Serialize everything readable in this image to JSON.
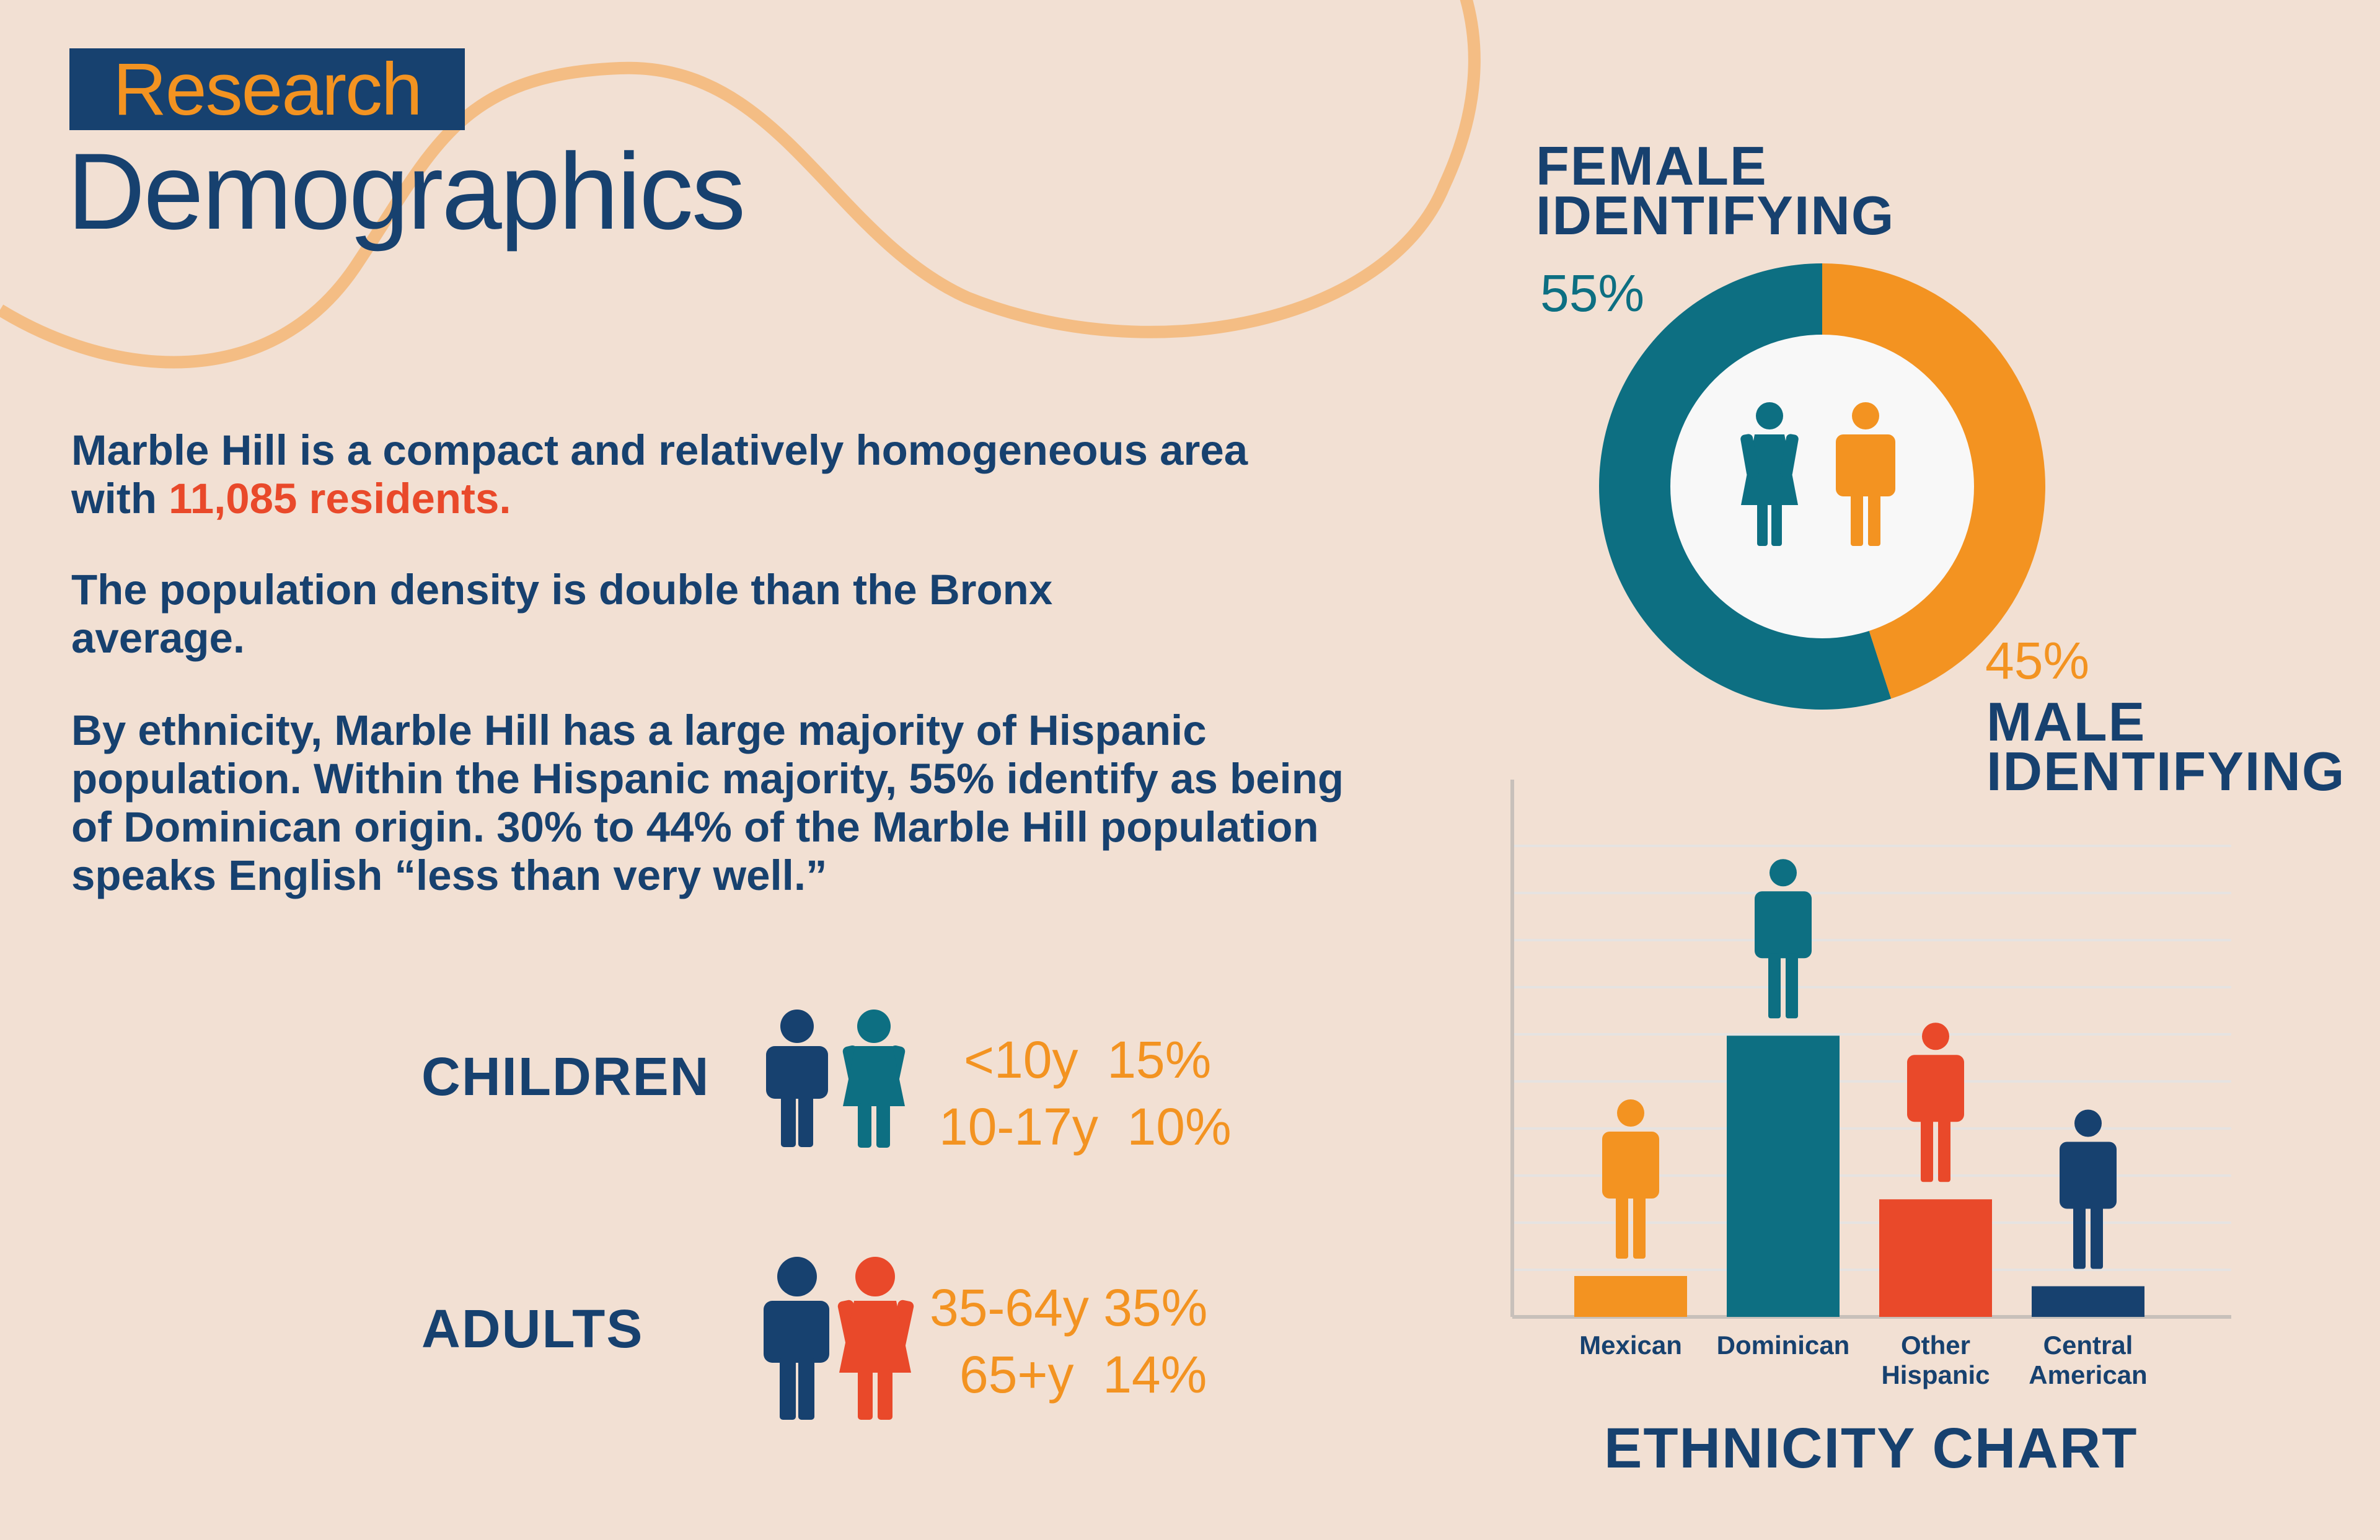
{
  "header": {
    "tag": "Research",
    "title": "Demographics"
  },
  "intro": {
    "p1_before": "Marble Hill is a compact and relatively homogeneous area with ",
    "p1_highlight": "11,085 residents.",
    "p2": "The population density is double than the Bronx average.",
    "p3": "By ethnicity, Marble Hill has a large majority of Hispanic population.  Within the Hispanic majority, 55% identify as being of Dominican origin. 30% to 44% of the Marble Hill population speaks English “less than very well.”"
  },
  "age_groups": [
    {
      "label": "CHILDREN",
      "stats": [
        {
          "range": "<10y",
          "pct": "15%"
        },
        {
          "range": "10-17y",
          "pct": "10%"
        }
      ]
    },
    {
      "label": "ADULTS",
      "stats": [
        {
          "range": "35-64y",
          "pct": "35%"
        },
        {
          "range": "65+y",
          "pct": "14%"
        }
      ]
    }
  ],
  "gender": {
    "female_title": [
      "FEMALE",
      "IDENTIFYING"
    ],
    "female_pct_label": "55%",
    "male_title": [
      "MALE",
      "IDENTIFYING"
    ],
    "male_pct_label": "45%",
    "chart_data": {
      "type": "pie",
      "categories": [
        "Female identifying",
        "Male identifying"
      ],
      "values": [
        55,
        45
      ],
      "colors": [
        "#0d6f82",
        "#f39321"
      ]
    }
  },
  "ethnicity": {
    "title": "ETHNICITY CHART",
    "chart_data": {
      "type": "bar",
      "categories": [
        "Mexican",
        "Dominican",
        "Other Hispanic",
        "Central American"
      ],
      "category_lines": [
        [
          "Mexican"
        ],
        [
          "Dominican"
        ],
        [
          "Other",
          "Hispanic"
        ],
        [
          "Central",
          "American"
        ]
      ],
      "values": [
        8,
        55,
        23,
        6
      ],
      "colors": [
        "#f39321",
        "#0d6f82",
        "#e9492a",
        "#17416f"
      ],
      "ylim": [
        0,
        100
      ],
      "grid": true
    }
  },
  "colors": {
    "background": "#f2e0d3",
    "navy": "#17416f",
    "teal": "#0d6f82",
    "orange": "#f39321",
    "red": "#e9492a",
    "deco_line": "#f4bd84"
  }
}
